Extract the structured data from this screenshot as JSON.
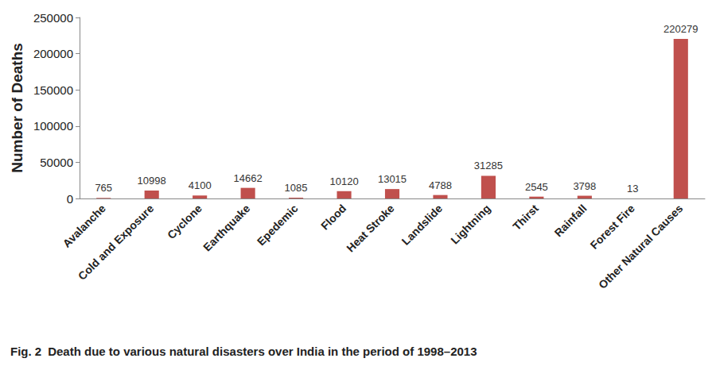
{
  "chart_data": {
    "type": "bar",
    "title": "Fig. 2 Death due to various natural disasters over India in the period of 1998–2013",
    "y_label": "Number of Deaths",
    "categories": [
      "Avalanche",
      "Cold and Exposure",
      "Cyclone",
      "Earthquake",
      "Epedemic",
      "Flood",
      "Heat Stroke",
      "Landslide",
      "Lightning",
      "Thirst",
      "Rainfall",
      "Forest Fire",
      "Other Natural Causes"
    ],
    "values": [
      765,
      10998,
      4100,
      14662,
      1085,
      10120,
      13015,
      4788,
      31285,
      2545,
      3798,
      13,
      220279
    ],
    "color": "#c0504d",
    "ylim": [
      0,
      250000
    ],
    "yticks": [
      0,
      50000,
      100000,
      150000,
      200000,
      250000
    ],
    "grid": false,
    "data_labels": true
  }
}
